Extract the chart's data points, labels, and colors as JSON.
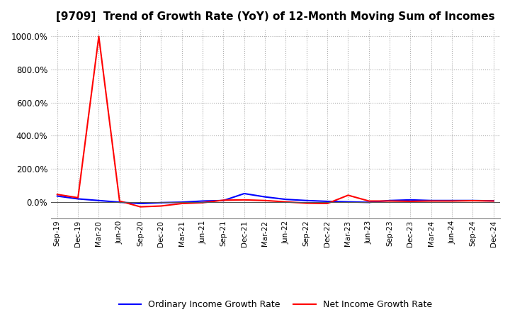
{
  "title": "[9709]  Trend of Growth Rate (YoY) of 12-Month Moving Sum of Incomes",
  "title_fontsize": 11,
  "ylim": [
    -100,
    1050
  ],
  "yticks": [
    0,
    200,
    400,
    600,
    800,
    1000
  ],
  "yticklabels": [
    "0.0%",
    "200.0%",
    "400.0%",
    "600.0%",
    "800.0%",
    "1000.0%"
  ],
  "background_color": "#ffffff",
  "grid_color": "#aaaaaa",
  "legend_labels": [
    "Ordinary Income Growth Rate",
    "Net Income Growth Rate"
  ],
  "legend_colors": [
    "#0000ff",
    "#ff0000"
  ],
  "dates": [
    "Sep-19",
    "Dec-19",
    "Mar-20",
    "Jun-20",
    "Sep-20",
    "Dec-20",
    "Mar-21",
    "Jun-21",
    "Sep-21",
    "Dec-21",
    "Mar-22",
    "Jun-22",
    "Sep-22",
    "Dec-22",
    "Mar-23",
    "Jun-23",
    "Sep-23",
    "Dec-23",
    "Mar-24",
    "Jun-24",
    "Sep-24",
    "Dec-24"
  ],
  "ordinary_income_growth": [
    35,
    18,
    8,
    -2,
    -10,
    -5,
    -2,
    5,
    8,
    50,
    30,
    15,
    8,
    3,
    0,
    -3,
    8,
    12,
    8,
    8,
    8,
    6
  ],
  "net_income_growth": [
    45,
    25,
    1000,
    5,
    -30,
    -25,
    -10,
    -5,
    10,
    12,
    8,
    0,
    -8,
    -10,
    40,
    5,
    5,
    3,
    5,
    5,
    7,
    5
  ]
}
